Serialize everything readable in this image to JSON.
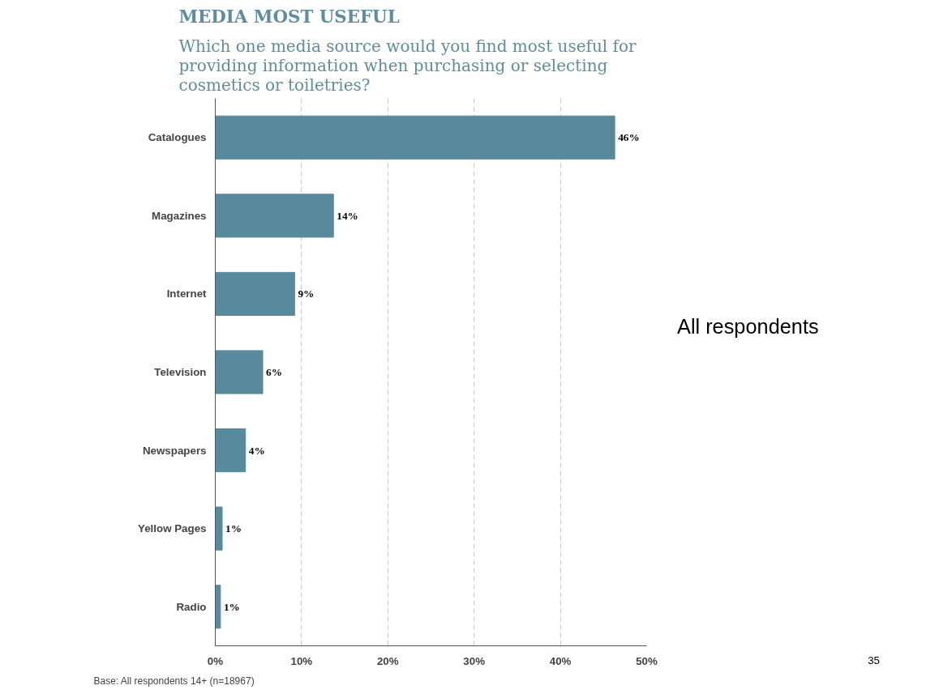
{
  "chart_data": {
    "type": "bar",
    "orientation": "horizontal",
    "title": "MEDIA MOST USEFUL",
    "subtitle": "Which one media source would you find most useful for providing information when purchasing or selecting cosmetics or toiletries?",
    "categories": [
      "Catalogues",
      "Magazines",
      "Internet",
      "Television",
      "Newspapers",
      "Yellow Pages",
      "Radio"
    ],
    "values": [
      46.3,
      13.7,
      9.2,
      5.5,
      3.5,
      0.8,
      0.6
    ],
    "value_labels": [
      "46%",
      "14%",
      "9%",
      "6%",
      "4%",
      "1%",
      "1%"
    ],
    "color": "#588a9e",
    "xlim": [
      0,
      50
    ],
    "xticks": [
      {
        "value": 0,
        "label": "0%"
      },
      {
        "value": 10,
        "label": "10%"
      },
      {
        "value": 20,
        "label": "20%"
      },
      {
        "value": 30,
        "label": "30%"
      },
      {
        "value": 40,
        "label": "40%"
      },
      {
        "value": 50,
        "label": "50%"
      }
    ],
    "grid": "x",
    "annotations": [
      "All respondents",
      "Base: All respondents 14+ (n=18967)",
      "35"
    ]
  }
}
